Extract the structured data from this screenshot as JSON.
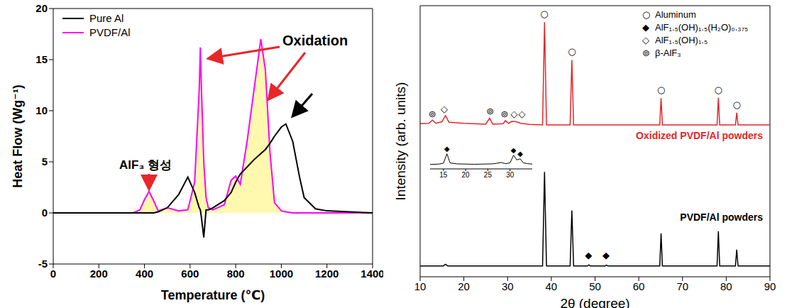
{
  "chart_data": [
    {
      "type": "line",
      "x_label": "Temperature (℃)",
      "y_label": "Heat Flow (Wg⁻¹)",
      "xlim": [
        0,
        1400
      ],
      "xticks": [
        0,
        200,
        400,
        600,
        800,
        1000,
        1200,
        1400
      ],
      "ylim": [
        -5,
        20
      ],
      "yticks": [
        -5,
        0,
        5,
        10,
        15,
        20
      ],
      "grid": false,
      "legend": "upper left",
      "x": [
        0,
        100,
        200,
        300,
        350,
        380,
        400,
        420,
        440,
        460,
        500,
        550,
        590,
        620,
        640,
        645,
        650,
        660,
        670,
        680,
        700,
        750,
        780,
        800,
        820,
        850,
        880,
        910,
        930,
        950,
        970,
        1000,
        1020,
        1050,
        1080,
        1100,
        1150,
        1200,
        1300,
        1400
      ],
      "series": [
        {
          "name": "Pure Al",
          "color": "#000000",
          "type": "line",
          "values": [
            0,
            0,
            0,
            0,
            0,
            0,
            0,
            0,
            0,
            0.1,
            0.5,
            1.8,
            3.5,
            2,
            0.5,
            0.3,
            -0.5,
            -2.4,
            0.3,
            0.3,
            0.5,
            1.2,
            2,
            3,
            3.8,
            4.5,
            5.2,
            5.8,
            6.2,
            6.8,
            7.5,
            8.4,
            8.7,
            7,
            3.5,
            1.5,
            0.4,
            0.2,
            0.1,
            0
          ]
        },
        {
          "name": "PVDF/Al",
          "color": "#ff00ff",
          "type": "area",
          "values": [
            0,
            0,
            0,
            0,
            0,
            0.3,
            1.3,
            2.1,
            1.2,
            0.2,
            0.5,
            0.2,
            0.3,
            3,
            12,
            16.2,
            12,
            5,
            1.5,
            0.5,
            0.3,
            0.8,
            3.2,
            3.6,
            2.8,
            7,
            12,
            17,
            14,
            6,
            1,
            0.2,
            0.1,
            0,
            0,
            0,
            0,
            0,
            0,
            0
          ]
        }
      ],
      "annotations": [
        "AlF₃ 형성",
        "Oxidation"
      ]
    },
    {
      "type": "line",
      "x_label": "2θ (degree)",
      "y_label": "Intensity (arb. units)",
      "xlim": [
        10,
        90
      ],
      "xticks": [
        10,
        20,
        30,
        40,
        50,
        60,
        70,
        80,
        90
      ],
      "ylim": [
        0,
        100
      ],
      "tick_labels": "x",
      "grid": false,
      "series": [
        {
          "name": "Oxidized PVDF/Al powders",
          "color": "#e3262b",
          "x": [
            10,
            12,
            12.8,
            13.6,
            15,
            15.8,
            16.6,
            20,
            25,
            25.9,
            26.6,
            29,
            29.5,
            30.2,
            31,
            32,
            33,
            35,
            38,
            38.45,
            38.9,
            44.3,
            44.7,
            45.1,
            64.8,
            65.1,
            65.4,
            77.9,
            78.2,
            78.5,
            82.1,
            82.4,
            82.7,
            90
          ],
          "values": [
            56.5,
            56.6,
            57.8,
            56.6,
            57.2,
            59.5,
            57,
            56.6,
            56.3,
            58.5,
            56.3,
            56.5,
            57.6,
            56.6,
            57.3,
            57.2,
            56.6,
            56.2,
            56,
            93.9,
            56,
            56,
            80,
            56,
            56,
            65.9,
            56,
            56,
            66,
            56,
            56,
            60.5,
            56,
            56
          ]
        },
        {
          "name": "PVDF/Al powders",
          "color": "#000000",
          "x": [
            10,
            15.3,
            15.8,
            16.3,
            38,
            38.45,
            38.9,
            44.3,
            44.7,
            45.1,
            48.3,
            48.6,
            48.9,
            52.3,
            52.6,
            52.9,
            64.8,
            65.1,
            65.4,
            77.9,
            78.2,
            78.5,
            82.1,
            82.4,
            82.7,
            90
          ],
          "values": [
            4,
            4,
            4.6,
            4,
            4,
            38.7,
            4,
            4,
            24.5,
            4,
            4,
            4.4,
            4,
            4,
            4.3,
            4,
            4,
            16,
            4,
            4,
            16.8,
            4,
            4,
            10,
            4,
            4
          ]
        }
      ],
      "phases": [
        {
          "symbol": "○",
          "name": "Aluminum"
        },
        {
          "symbol": "◆",
          "name": "AlF₁.₅(OH)₁.₅(H₂O)₀.₃₇₅"
        },
        {
          "symbol": "◇",
          "name": "AlF₁.₅(OH)₁.₅"
        },
        {
          "symbol": "⊚",
          "name": "β-AlF₃"
        }
      ],
      "markers": [
        {
          "symbol": "○",
          "x": 38.4,
          "y": 97
        },
        {
          "symbol": "○",
          "x": 44.7,
          "y": 83
        },
        {
          "symbol": "○",
          "x": 65.1,
          "y": 69
        },
        {
          "symbol": "○",
          "x": 78.2,
          "y": 69
        },
        {
          "symbol": "○",
          "x": 82.4,
          "y": 63.5
        },
        {
          "symbol": "⊚",
          "x": 12.8,
          "y": 60
        },
        {
          "symbol": "◇",
          "x": 15.5,
          "y": 62
        },
        {
          "symbol": "⊚",
          "x": 26,
          "y": 61
        },
        {
          "symbol": "⊚",
          "x": 29.3,
          "y": 60
        },
        {
          "symbol": "◇",
          "x": 31.5,
          "y": 60
        },
        {
          "symbol": "◇",
          "x": 33.3,
          "y": 60
        },
        {
          "symbol": "◆",
          "x": 48.5,
          "y": 8
        },
        {
          "symbol": "◆",
          "x": 52.5,
          "y": 8
        }
      ],
      "inset": {
        "type": "line",
        "xlim": [
          12,
          35
        ],
        "xticks": [
          15,
          20,
          25,
          30
        ],
        "ylim": [
          0,
          12
        ],
        "tick_labels": "x",
        "series": [
          {
            "color": "#000000",
            "x": [
              12,
              14,
              15,
              15.8,
              16.5,
              18,
              20,
              22,
              24,
              26,
              27,
              28,
              29,
              30,
              30.8,
              31.5,
              32.3,
              33,
              34,
              35
            ],
            "values": [
              2.2,
              2.4,
              2.8,
              7.5,
              3,
              2.5,
              2.4,
              2.3,
              2.4,
              2.5,
              2.8,
              3.2,
              2.6,
              3,
              6.8,
              4.5,
              5,
              3,
              2.6,
              2.4
            ]
          }
        ],
        "markers": [
          {
            "symbol": "◆",
            "x": 15.8,
            "y": 10
          },
          {
            "symbol": "◆",
            "x": 30.8,
            "y": 9.5
          },
          {
            "symbol": "◆",
            "x": 32.3,
            "y": 7.5
          }
        ]
      }
    }
  ]
}
